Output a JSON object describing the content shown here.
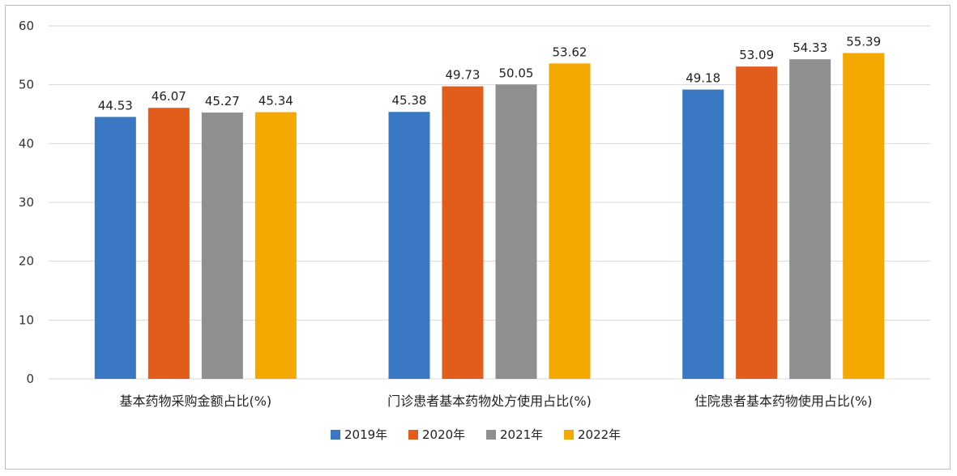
{
  "chart_data": {
    "type": "bar",
    "categories": [
      "基本药物采购金额占比(%)",
      "门诊患者基本药物处方使用占比(%)",
      "住院患者基本药物使用占比(%)"
    ],
    "series": [
      {
        "name": "2019年",
        "color": "#3a78c4",
        "values": [
          44.53,
          45.38,
          49.18
        ]
      },
      {
        "name": "2020年",
        "color": "#e25c1c",
        "values": [
          46.07,
          49.73,
          53.09
        ]
      },
      {
        "name": "2021年",
        "color": "#8f8f8f",
        "values": [
          45.27,
          50.05,
          54.33
        ]
      },
      {
        "name": "2022年",
        "color": "#f4a900",
        "values": [
          45.34,
          53.62,
          55.39
        ]
      }
    ],
    "ylim": [
      0,
      60
    ],
    "yticks": [
      0,
      10,
      20,
      30,
      40,
      50,
      60
    ],
    "grid": true,
    "legend_position": "bottom",
    "title": "",
    "xlabel": "",
    "ylabel": ""
  }
}
